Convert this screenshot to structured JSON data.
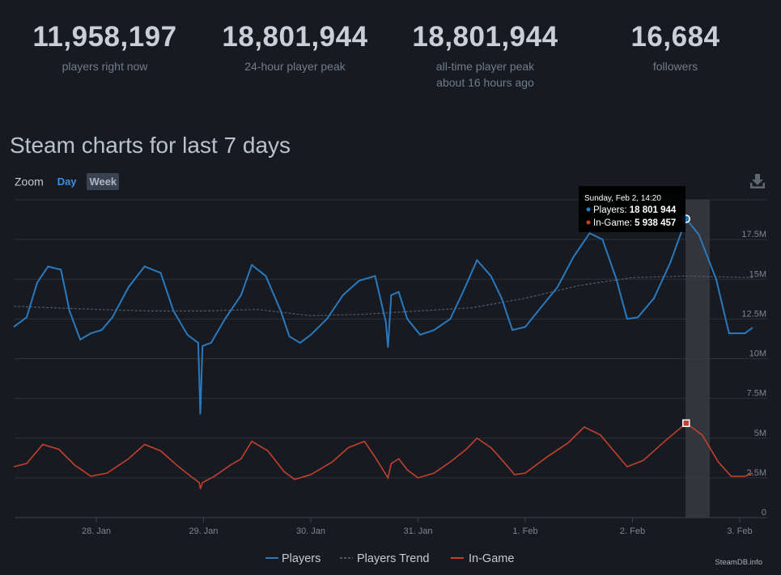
{
  "stats": [
    {
      "value": "11,958,197",
      "label": "players right now"
    },
    {
      "value": "18,801,944",
      "label": "24-hour player peak"
    },
    {
      "value": "18,801,944",
      "label": "all-time player peak",
      "sublabel": "about 16 hours ago"
    },
    {
      "value": "16,684",
      "label": "followers"
    }
  ],
  "title": "Steam charts for last 7 days",
  "zoom": {
    "label": "Zoom",
    "options": [
      "Day",
      "Week"
    ],
    "active": "Week"
  },
  "icons": {
    "download": "download-icon"
  },
  "colors": {
    "players": "#2a79bd",
    "in_game": "#c1402e",
    "trend": "#4f5865",
    "background": "#171a21"
  },
  "tooltip": {
    "date": "Sunday, Feb 2, 14:20",
    "players_label": "Players:",
    "players_value": "18 801 944",
    "ingame_label": "In-Game:",
    "ingame_value": "5 938 457"
  },
  "watermark": "SteamDB.info",
  "chart_data": {
    "type": "line",
    "x_unit": "days",
    "x_ticks": [
      "28. Jan",
      "29. Jan",
      "30. Jan",
      "31. Jan",
      "1. Feb",
      "2. Feb",
      "3. Feb"
    ],
    "y_ticks": [
      "0",
      "2.5M",
      "5M",
      "7.5M",
      "10M",
      "12.5M",
      "15M",
      "17.5M"
    ],
    "ylim": [
      0,
      20000000
    ],
    "grid": true,
    "legend_position": "bottom-center",
    "legend": [
      "Players",
      "Players Trend",
      "In-Game"
    ],
    "series": [
      {
        "name": "Players",
        "points": [
          [
            -0.77,
            12.0
          ],
          [
            -0.65,
            12.6
          ],
          [
            -0.55,
            14.8
          ],
          [
            -0.45,
            15.8
          ],
          [
            -0.33,
            15.6
          ],
          [
            -0.25,
            13.0
          ],
          [
            -0.15,
            11.2
          ],
          [
            -0.05,
            11.6
          ],
          [
            0.05,
            11.8
          ],
          [
            0.15,
            12.6
          ],
          [
            0.3,
            14.5
          ],
          [
            0.45,
            15.8
          ],
          [
            0.6,
            15.4
          ],
          [
            0.72,
            13.0
          ],
          [
            0.85,
            11.5
          ],
          [
            0.95,
            11.0
          ],
          [
            0.97,
            6.5
          ],
          [
            0.99,
            10.8
          ],
          [
            1.07,
            11.0
          ],
          [
            1.2,
            12.5
          ],
          [
            1.35,
            14.0
          ],
          [
            1.45,
            15.9
          ],
          [
            1.58,
            15.2
          ],
          [
            1.72,
            13.0
          ],
          [
            1.8,
            11.4
          ],
          [
            1.9,
            11.0
          ],
          [
            2.0,
            11.5
          ],
          [
            2.15,
            12.5
          ],
          [
            2.3,
            14.0
          ],
          [
            2.45,
            14.9
          ],
          [
            2.6,
            15.2
          ],
          [
            2.7,
            12.3
          ],
          [
            2.72,
            10.7
          ],
          [
            2.75,
            14.0
          ],
          [
            2.82,
            14.2
          ],
          [
            2.9,
            12.5
          ],
          [
            3.02,
            11.5
          ],
          [
            3.15,
            11.8
          ],
          [
            3.3,
            12.5
          ],
          [
            3.42,
            14.2
          ],
          [
            3.55,
            16.2
          ],
          [
            3.68,
            15.2
          ],
          [
            3.78,
            13.8
          ],
          [
            3.88,
            11.8
          ],
          [
            4.0,
            12.0
          ],
          [
            4.12,
            13.0
          ],
          [
            4.3,
            14.5
          ],
          [
            4.45,
            16.4
          ],
          [
            4.6,
            17.9
          ],
          [
            4.72,
            17.5
          ],
          [
            4.85,
            15.0
          ],
          [
            4.95,
            12.5
          ],
          [
            5.05,
            12.6
          ],
          [
            5.2,
            13.8
          ],
          [
            5.35,
            16.0
          ],
          [
            5.5,
            18.8
          ],
          [
            5.62,
            17.8
          ],
          [
            5.78,
            15.0
          ],
          [
            5.9,
            11.6
          ],
          [
            6.05,
            11.6
          ],
          [
            6.12,
            11.96
          ]
        ]
      },
      {
        "name": "Players Trend",
        "points": [
          [
            -0.77,
            13.3
          ],
          [
            0.0,
            13.1
          ],
          [
            0.5,
            13.0
          ],
          [
            1.0,
            13.0
          ],
          [
            1.5,
            13.1
          ],
          [
            2.0,
            12.7
          ],
          [
            2.5,
            12.8
          ],
          [
            3.0,
            13.0
          ],
          [
            3.5,
            13.2
          ],
          [
            4.0,
            13.8
          ],
          [
            4.5,
            14.6
          ],
          [
            5.0,
            15.1
          ],
          [
            5.5,
            15.2
          ],
          [
            6.12,
            15.1
          ]
        ]
      },
      {
        "name": "In-Game",
        "points": [
          [
            -0.77,
            3.2
          ],
          [
            -0.65,
            3.4
          ],
          [
            -0.5,
            4.6
          ],
          [
            -0.35,
            4.3
          ],
          [
            -0.2,
            3.3
          ],
          [
            -0.05,
            2.6
          ],
          [
            0.1,
            2.8
          ],
          [
            0.3,
            3.7
          ],
          [
            0.45,
            4.6
          ],
          [
            0.6,
            4.2
          ],
          [
            0.75,
            3.3
          ],
          [
            0.88,
            2.6
          ],
          [
            0.96,
            2.2
          ],
          [
            0.97,
            1.8
          ],
          [
            0.99,
            2.2
          ],
          [
            1.1,
            2.6
          ],
          [
            1.25,
            3.3
          ],
          [
            1.35,
            3.7
          ],
          [
            1.45,
            4.8
          ],
          [
            1.6,
            4.2
          ],
          [
            1.75,
            2.9
          ],
          [
            1.85,
            2.4
          ],
          [
            2.0,
            2.7
          ],
          [
            2.2,
            3.5
          ],
          [
            2.35,
            4.4
          ],
          [
            2.5,
            4.8
          ],
          [
            2.6,
            3.8
          ],
          [
            2.72,
            2.5
          ],
          [
            2.75,
            3.4
          ],
          [
            2.82,
            3.7
          ],
          [
            2.9,
            3.0
          ],
          [
            3.0,
            2.5
          ],
          [
            3.15,
            2.8
          ],
          [
            3.3,
            3.5
          ],
          [
            3.45,
            4.3
          ],
          [
            3.55,
            5.0
          ],
          [
            3.68,
            4.4
          ],
          [
            3.8,
            3.5
          ],
          [
            3.9,
            2.7
          ],
          [
            4.0,
            2.8
          ],
          [
            4.2,
            3.8
          ],
          [
            4.4,
            4.7
          ],
          [
            4.55,
            5.7
          ],
          [
            4.7,
            5.2
          ],
          [
            4.85,
            4.0
          ],
          [
            4.95,
            3.2
          ],
          [
            5.1,
            3.6
          ],
          [
            5.3,
            4.8
          ],
          [
            5.5,
            5.94
          ],
          [
            5.65,
            5.2
          ],
          [
            5.8,
            3.5
          ],
          [
            5.92,
            2.6
          ],
          [
            6.05,
            2.6
          ],
          [
            6.12,
            2.8
          ]
        ]
      }
    ],
    "highlight": {
      "x": 5.5,
      "players": 18.8,
      "in_game": 5.94
    }
  }
}
